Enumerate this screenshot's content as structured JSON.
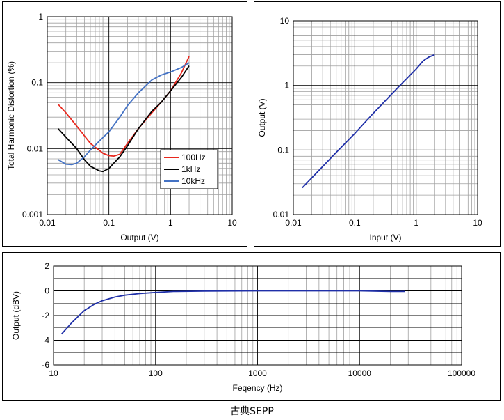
{
  "caption": "古典SEPP",
  "chart_data": [
    {
      "type": "line",
      "xscale": "log",
      "yscale": "log",
      "xlim": [
        0.01,
        10
      ],
      "ylim": [
        0.001,
        1
      ],
      "xlabel": "Output (V)",
      "ylabel": "Total Harmonic Distortion (%)",
      "xticks": [
        "0.01",
        "0.1",
        "1",
        "10"
      ],
      "yticks": [
        "0.001",
        "0.01",
        "0.1",
        "1"
      ],
      "grid": true,
      "legend_position": "inside center-right",
      "series": [
        {
          "name": "100Hz",
          "color": "#e8281e",
          "x": [
            0.015,
            0.02,
            0.03,
            0.05,
            0.08,
            0.1,
            0.12,
            0.15,
            0.2,
            0.3,
            0.5,
            0.7,
            1.0,
            1.5,
            2.0
          ],
          "y": [
            0.047,
            0.035,
            0.022,
            0.012,
            0.0085,
            0.0078,
            0.0077,
            0.0082,
            0.012,
            0.02,
            0.035,
            0.05,
            0.075,
            0.14,
            0.25
          ]
        },
        {
          "name": "1kHz",
          "color": "#000000",
          "x": [
            0.015,
            0.02,
            0.03,
            0.04,
            0.05,
            0.07,
            0.08,
            0.1,
            0.12,
            0.15,
            0.2,
            0.3,
            0.5,
            0.7,
            1.0,
            1.5,
            2.0
          ],
          "y": [
            0.02,
            0.015,
            0.01,
            0.0068,
            0.0054,
            0.0046,
            0.0045,
            0.005,
            0.006,
            0.0075,
            0.011,
            0.02,
            0.037,
            0.05,
            0.075,
            0.12,
            0.18
          ]
        },
        {
          "name": "10kHz",
          "color": "#4472c4",
          "x": [
            0.015,
            0.02,
            0.025,
            0.03,
            0.04,
            0.05,
            0.07,
            0.1,
            0.15,
            0.2,
            0.3,
            0.5,
            0.7,
            1.0,
            1.5,
            2.0
          ],
          "y": [
            0.0068,
            0.0058,
            0.0057,
            0.006,
            0.0075,
            0.0095,
            0.013,
            0.018,
            0.03,
            0.045,
            0.07,
            0.11,
            0.13,
            0.145,
            0.17,
            0.2
          ]
        }
      ]
    },
    {
      "type": "line",
      "xscale": "log",
      "yscale": "log",
      "xlim": [
        0.01,
        10
      ],
      "ylim": [
        0.01,
        10
      ],
      "xlabel": "Input (V)",
      "ylabel": "Output (V)",
      "xticks": [
        "0.01",
        "0.1",
        "1",
        "10"
      ],
      "yticks": [
        "0.01",
        "0.1",
        "1",
        "10"
      ],
      "grid": true,
      "series": [
        {
          "color": "#1f2fa8",
          "x": [
            0.014,
            0.02,
            0.05,
            0.1,
            0.2,
            0.5,
            1.0,
            1.3,
            1.6,
            2.0
          ],
          "y": [
            0.026,
            0.037,
            0.092,
            0.18,
            0.37,
            0.92,
            1.8,
            2.4,
            2.75,
            3.0
          ]
        }
      ]
    },
    {
      "type": "line",
      "xscale": "log",
      "yscale": "linear",
      "xlim": [
        10,
        100000
      ],
      "ylim": [
        -6,
        2
      ],
      "xlabel": "Feqency (Hz)",
      "ylabel": "Output (dBV)",
      "xticks": [
        "10",
        "100",
        "1000",
        "10000",
        "100000"
      ],
      "yticks": [
        "2",
        "0",
        "-2",
        "-4",
        "-6"
      ],
      "grid": true,
      "series": [
        {
          "color": "#1f2fa8",
          "x": [
            12,
            15,
            20,
            25,
            30,
            40,
            50,
            70,
            100,
            150,
            300,
            1000,
            10000,
            20000,
            28000
          ],
          "y": [
            -3.5,
            -2.6,
            -1.6,
            -1.1,
            -0.8,
            -0.5,
            -0.35,
            -0.22,
            -0.13,
            -0.05,
            -0.02,
            0,
            0,
            -0.05,
            -0.05
          ]
        }
      ]
    }
  ]
}
